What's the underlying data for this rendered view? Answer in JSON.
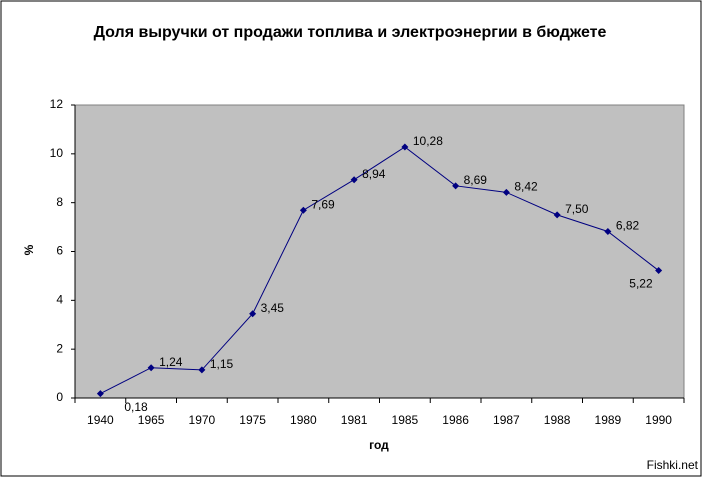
{
  "chart_data": {
    "type": "line",
    "title": "Доля выручки от продажи топлива и электроэнергии в бюджете",
    "x_label": "год",
    "y_label": "%",
    "categories": [
      "1940",
      "1965",
      "1970",
      "1975",
      "1980",
      "1981",
      "1985",
      "1986",
      "1987",
      "1988",
      "1989",
      "1990"
    ],
    "values": [
      0.18,
      1.24,
      1.15,
      3.45,
      7.69,
      8.94,
      10.28,
      8.69,
      8.42,
      7.5,
      6.82,
      5.22
    ],
    "value_labels": [
      "0,18",
      "1,24",
      "1,15",
      "3,45",
      "7,69",
      "8,94",
      "10,28",
      "8,69",
      "8,42",
      "7,50",
      "6,82",
      "5,22"
    ],
    "color": "#000080",
    "ylim": [
      0,
      12
    ],
    "yticks": [
      0,
      2,
      4,
      6,
      8,
      10,
      12
    ],
    "watermark": "Fishki.net"
  }
}
